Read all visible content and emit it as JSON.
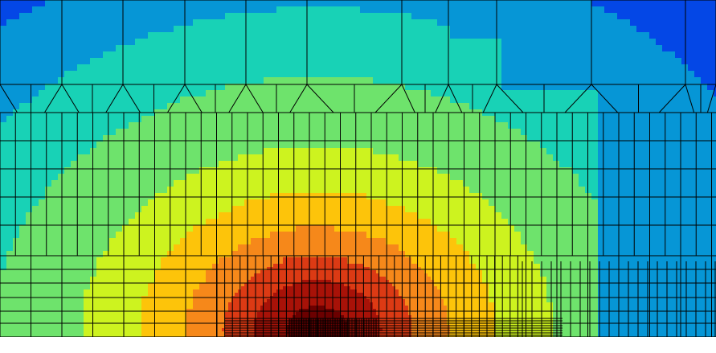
{
  "plot": {
    "colormap": [
      "#0447e6",
      "#0696d6",
      "#18d2b6",
      "#6ee36c",
      "#cdf31f",
      "#fdc40a",
      "#f6881a",
      "#dc3a14",
      "#a81208",
      "#6c0000"
    ],
    "mesh_line_color": "#000000",
    "background": "#ffffff",
    "axes_visible": false,
    "colorbar_visible": false
  }
}
